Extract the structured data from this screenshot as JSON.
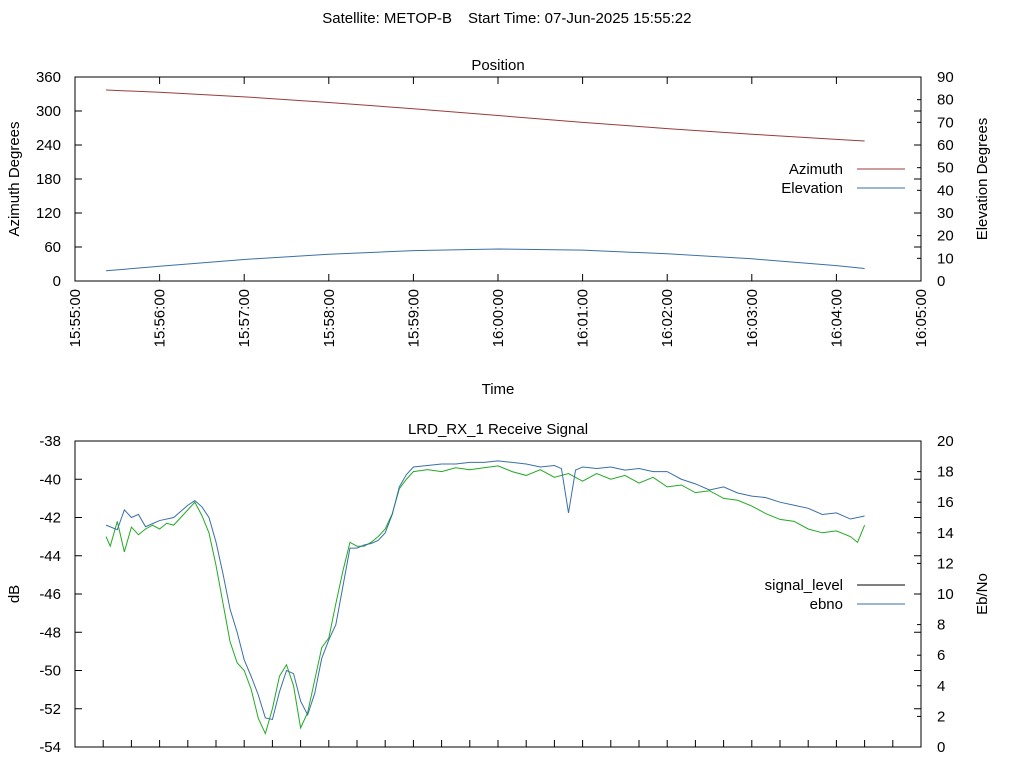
{
  "suptitle": {
    "satellite": "Satellite: METOP-B",
    "start_time": "Start Time: 07-Jun-2025 15:55:22"
  },
  "chart_data": [
    {
      "type": "line",
      "title": "Position",
      "xlabel": "Time",
      "ylabel": "Azimuth Degrees",
      "y2label": "Elevation Degrees",
      "xlim": [
        "15:55:00",
        "16:05:00"
      ],
      "xticks": [
        "15:55:00",
        "15:56:00",
        "15:57:00",
        "15:58:00",
        "15:59:00",
        "16:00:00",
        "16:01:00",
        "16:02:00",
        "16:03:00",
        "16:04:00",
        "16:05:00"
      ],
      "ylim": [
        0,
        360
      ],
      "yticks": [
        0,
        60,
        120,
        180,
        240,
        300,
        360
      ],
      "y2lim": [
        0,
        90
      ],
      "y2ticks": [
        0,
        10,
        20,
        30,
        40,
        50,
        60,
        70,
        80,
        90
      ],
      "legend_position": "right",
      "series": [
        {
          "name": "Azimuth",
          "axis": "left",
          "color": "#9a3b3b",
          "points": [
            [
              "15:55:22",
              337
            ],
            [
              "15:56:00",
              333
            ],
            [
              "15:57:00",
              325
            ],
            [
              "15:58:00",
              315
            ],
            [
              "15:59:00",
              304
            ],
            [
              "16:00:00",
              292
            ],
            [
              "16:01:00",
              280
            ],
            [
              "16:02:00",
              269
            ],
            [
              "16:03:00",
              259
            ],
            [
              "16:04:00",
              250
            ],
            [
              "16:04:20",
              247
            ]
          ]
        },
        {
          "name": "Elevation",
          "axis": "right",
          "color": "#3a6fa8",
          "points": [
            [
              "15:55:22",
              4.5
            ],
            [
              "15:56:00",
              6.5
            ],
            [
              "15:57:00",
              9.5
            ],
            [
              "15:58:00",
              11.8
            ],
            [
              "15:59:00",
              13.4
            ],
            [
              "16:00:00",
              14.1
            ],
            [
              "16:01:00",
              13.6
            ],
            [
              "16:02:00",
              12.0
            ],
            [
              "16:03:00",
              9.8
            ],
            [
              "16:04:00",
              6.8
            ],
            [
              "16:04:20",
              5.5
            ]
          ]
        }
      ]
    },
    {
      "type": "line",
      "title": "LRD_RX_1 Receive Signal",
      "ylabel": "dB",
      "y2label": "Eb/No",
      "xlim": [
        "15:55:00",
        "16:05:00"
      ],
      "ylim": [
        -54,
        -38
      ],
      "yticks": [
        -54,
        -52,
        -50,
        -48,
        -46,
        -44,
        -42,
        -40,
        -38
      ],
      "y2lim": [
        0,
        20
      ],
      "y2ticks": [
        0,
        2,
        4,
        6,
        8,
        10,
        12,
        14,
        16,
        18,
        20
      ],
      "legend_position": "right",
      "series": [
        {
          "name": "signal_level",
          "axis": "left",
          "color": "#000000",
          "plotted_color": "#22aa22",
          "points": [
            [
              "15:55:22",
              -43.0
            ],
            [
              "15:55:25",
              -43.5
            ],
            [
              "15:55:30",
              -42.2
            ],
            [
              "15:55:35",
              -43.8
            ],
            [
              "15:55:40",
              -42.5
            ],
            [
              "15:55:45",
              -42.9
            ],
            [
              "15:55:50",
              -42.6
            ],
            [
              "15:55:55",
              -42.4
            ],
            [
              "15:56:00",
              -42.6
            ],
            [
              "15:56:05",
              -42.3
            ],
            [
              "15:56:10",
              -42.4
            ],
            [
              "15:56:15",
              -42.0
            ],
            [
              "15:56:20",
              -41.6
            ],
            [
              "15:56:25",
              -41.2
            ],
            [
              "15:56:30",
              -41.9
            ],
            [
              "15:56:35",
              -42.8
            ],
            [
              "15:56:40",
              -44.5
            ],
            [
              "15:56:45",
              -46.5
            ],
            [
              "15:56:50",
              -48.5
            ],
            [
              "15:56:55",
              -49.6
            ],
            [
              "15:57:00",
              -50.0
            ],
            [
              "15:57:05",
              -51.0
            ],
            [
              "15:57:10",
              -52.5
            ],
            [
              "15:57:15",
              -53.3
            ],
            [
              "15:57:20",
              -52.0
            ],
            [
              "15:57:25",
              -50.3
            ],
            [
              "15:57:30",
              -49.7
            ],
            [
              "15:57:35",
              -50.8
            ],
            [
              "15:57:40",
              -53.0
            ],
            [
              "15:57:45",
              -52.2
            ],
            [
              "15:57:50",
              -50.5
            ],
            [
              "15:57:55",
              -48.8
            ],
            [
              "15:58:00",
              -48.3
            ],
            [
              "15:58:05",
              -46.5
            ],
            [
              "15:58:10",
              -44.8
            ],
            [
              "15:58:15",
              -43.3
            ],
            [
              "15:58:20",
              -43.5
            ],
            [
              "15:58:25",
              -43.5
            ],
            [
              "15:58:30",
              -43.3
            ],
            [
              "15:58:35",
              -43.0
            ],
            [
              "15:58:40",
              -42.6
            ],
            [
              "15:58:45",
              -41.8
            ],
            [
              "15:58:50",
              -40.5
            ],
            [
              "15:58:55",
              -40.0
            ],
            [
              "15:59:00",
              -39.6
            ],
            [
              "15:59:10",
              -39.5
            ],
            [
              "15:59:20",
              -39.6
            ],
            [
              "15:59:30",
              -39.4
            ],
            [
              "15:59:40",
              -39.5
            ],
            [
              "15:59:50",
              -39.4
            ],
            [
              "16:00:00",
              -39.3
            ],
            [
              "16:00:10",
              -39.6
            ],
            [
              "16:00:20",
              -39.8
            ],
            [
              "16:00:30",
              -39.5
            ],
            [
              "16:00:40",
              -39.9
            ],
            [
              "16:00:50",
              -39.7
            ],
            [
              "16:01:00",
              -40.1
            ],
            [
              "16:01:10",
              -39.7
            ],
            [
              "16:01:20",
              -40.0
            ],
            [
              "16:01:30",
              -39.8
            ],
            [
              "16:01:40",
              -40.2
            ],
            [
              "16:01:50",
              -39.9
            ],
            [
              "16:02:00",
              -40.4
            ],
            [
              "16:02:10",
              -40.3
            ],
            [
              "16:02:20",
              -40.7
            ],
            [
              "16:02:30",
              -40.6
            ],
            [
              "16:02:40",
              -41.0
            ],
            [
              "16:02:50",
              -41.1
            ],
            [
              "16:03:00",
              -41.4
            ],
            [
              "16:03:10",
              -41.8
            ],
            [
              "16:03:20",
              -42.1
            ],
            [
              "16:03:30",
              -42.2
            ],
            [
              "16:03:40",
              -42.6
            ],
            [
              "16:03:50",
              -42.8
            ],
            [
              "16:04:00",
              -42.7
            ],
            [
              "16:04:10",
              -43.0
            ],
            [
              "16:04:15",
              -43.3
            ],
            [
              "16:04:20",
              -42.4
            ]
          ]
        },
        {
          "name": "ebno",
          "axis": "right",
          "color": "#3a6fa8",
          "points": [
            [
              "15:55:22",
              14.5
            ],
            [
              "15:55:30",
              14.2
            ],
            [
              "15:55:35",
              15.5
            ],
            [
              "15:55:40",
              15.0
            ],
            [
              "15:55:45",
              15.2
            ],
            [
              "15:55:50",
              14.4
            ],
            [
              "15:55:55",
              14.6
            ],
            [
              "15:56:00",
              14.8
            ],
            [
              "15:56:10",
              15.0
            ],
            [
              "15:56:15",
              15.4
            ],
            [
              "15:56:20",
              15.8
            ],
            [
              "15:56:25",
              16.1
            ],
            [
              "15:56:30",
              15.7
            ],
            [
              "15:56:35",
              15.0
            ],
            [
              "15:56:40",
              13.4
            ],
            [
              "15:56:45",
              11.3
            ],
            [
              "15:56:50",
              9.0
            ],
            [
              "15:56:55",
              7.5
            ],
            [
              "15:57:00",
              5.7
            ],
            [
              "15:57:05",
              4.6
            ],
            [
              "15:57:10",
              3.4
            ],
            [
              "15:57:15",
              1.9
            ],
            [
              "15:57:20",
              1.8
            ],
            [
              "15:57:25",
              3.6
            ],
            [
              "15:57:30",
              5.0
            ],
            [
              "15:57:35",
              4.8
            ],
            [
              "15:57:40",
              3.0
            ],
            [
              "15:57:45",
              2.1
            ],
            [
              "15:57:50",
              3.5
            ],
            [
              "15:57:55",
              5.8
            ],
            [
              "15:58:00",
              7.0
            ],
            [
              "15:58:05",
              8.0
            ],
            [
              "15:58:10",
              10.5
            ],
            [
              "15:58:15",
              13.0
            ],
            [
              "15:58:20",
              13.0
            ],
            [
              "15:58:25",
              13.2
            ],
            [
              "15:58:30",
              13.3
            ],
            [
              "15:58:35",
              13.5
            ],
            [
              "15:58:40",
              14.0
            ],
            [
              "15:58:45",
              15.2
            ],
            [
              "15:58:50",
              17.0
            ],
            [
              "15:58:55",
              17.8
            ],
            [
              "15:59:00",
              18.3
            ],
            [
              "15:59:10",
              18.4
            ],
            [
              "15:59:20",
              18.5
            ],
            [
              "15:59:30",
              18.5
            ],
            [
              "15:59:40",
              18.6
            ],
            [
              "15:59:50",
              18.6
            ],
            [
              "16:00:00",
              18.7
            ],
            [
              "16:00:10",
              18.6
            ],
            [
              "16:00:20",
              18.5
            ],
            [
              "16:00:30",
              18.3
            ],
            [
              "16:00:40",
              18.4
            ],
            [
              "16:00:45",
              18.2
            ],
            [
              "16:00:50",
              15.3
            ],
            [
              "16:00:55",
              18.1
            ],
            [
              "16:01:00",
              18.3
            ],
            [
              "16:01:10",
              18.2
            ],
            [
              "16:01:20",
              18.3
            ],
            [
              "16:01:30",
              18.1
            ],
            [
              "16:01:40",
              18.2
            ],
            [
              "16:01:50",
              18.0
            ],
            [
              "16:02:00",
              18.0
            ],
            [
              "16:02:10",
              17.5
            ],
            [
              "16:02:20",
              17.2
            ],
            [
              "16:02:30",
              16.8
            ],
            [
              "16:02:40",
              17.0
            ],
            [
              "16:02:50",
              16.6
            ],
            [
              "16:03:00",
              16.4
            ],
            [
              "16:03:10",
              16.3
            ],
            [
              "16:03:20",
              16.0
            ],
            [
              "16:03:30",
              15.8
            ],
            [
              "16:03:40",
              15.6
            ],
            [
              "16:03:50",
              15.2
            ],
            [
              "16:04:00",
              15.3
            ],
            [
              "16:04:10",
              14.9
            ],
            [
              "16:04:20",
              15.1
            ]
          ]
        }
      ]
    }
  ]
}
